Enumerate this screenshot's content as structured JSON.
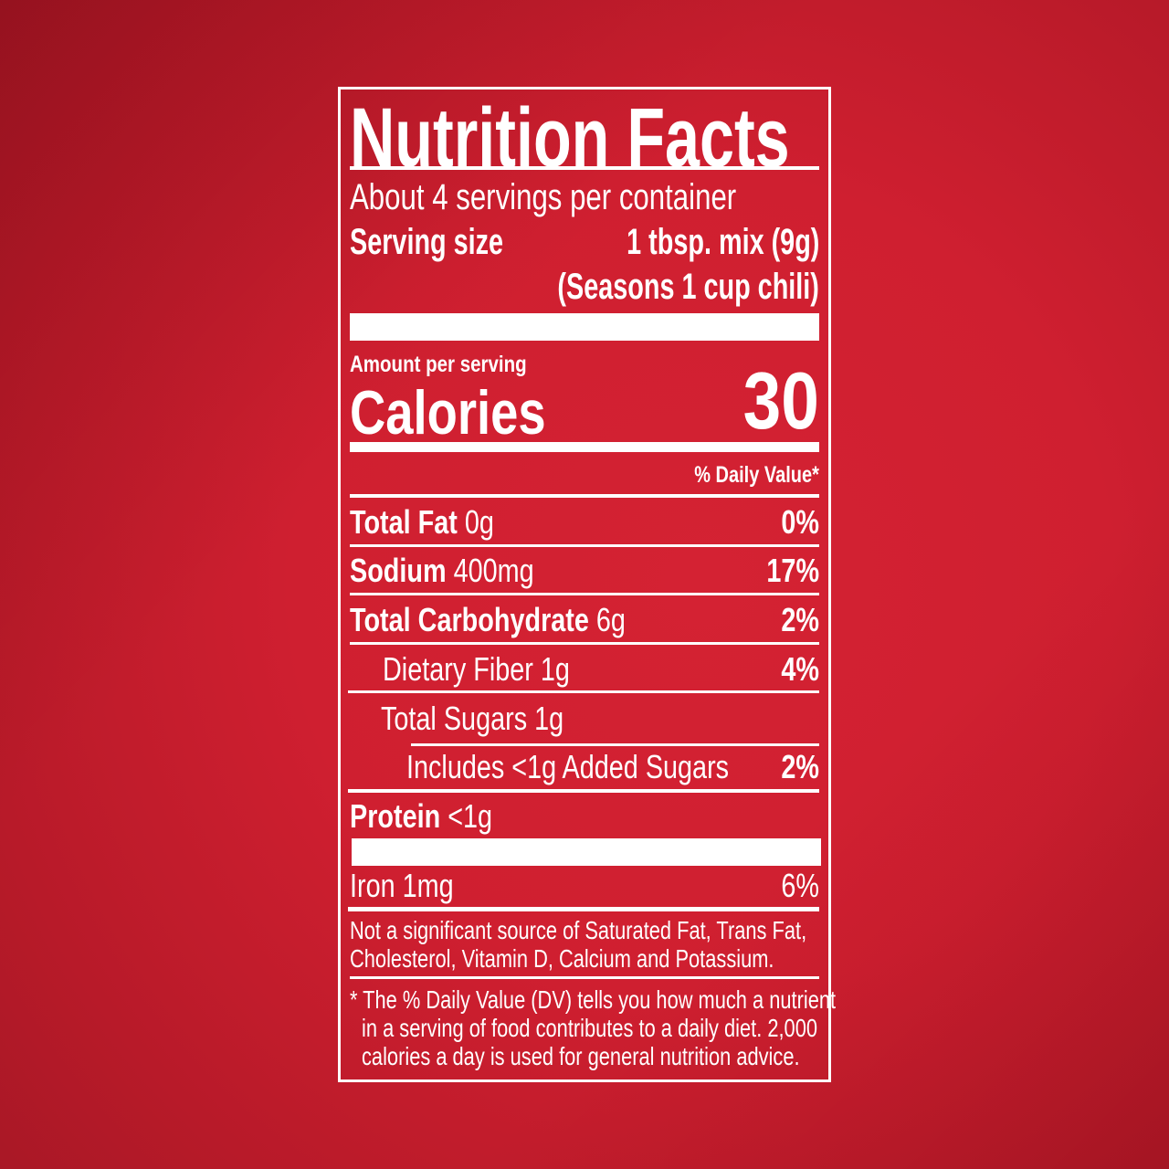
{
  "title": "Nutrition Facts",
  "servings_per_container": "About 4 servings per container",
  "serving_size": {
    "label": "Serving size",
    "value": "1 tbsp. mix (9g)",
    "note": "(Seasons 1 cup chili)"
  },
  "amount_per_serving": "Amount per serving",
  "calories": {
    "label": "Calories",
    "value": "30"
  },
  "daily_value_header": "% Daily Value*",
  "nutrients": [
    {
      "name": "Total Fat",
      "amount": "0g",
      "dv": "0%"
    },
    {
      "name": "Sodium",
      "amount": "400mg",
      "dv": "17%"
    },
    {
      "name": "Total Carbohydrate",
      "amount": "6g",
      "dv": "2%"
    },
    {
      "name": "Dietary Fiber 1g",
      "dv": "4%"
    },
    {
      "name": "Total Sugars 1g"
    },
    {
      "name": "Includes <1g Added Sugars",
      "dv": "2%"
    },
    {
      "name": "Protein",
      "amount": "<1g"
    }
  ],
  "minerals": [
    {
      "name": "Iron 1mg",
      "dv": "6%"
    }
  ],
  "not_significant": [
    "Not a significant source of Saturated Fat, Trans Fat,",
    "Cholesterol, Vitamin D, Calcium and Potassium."
  ],
  "footnote": [
    "* The % Daily Value (DV) tells you how much a nutrient",
    "in a serving of food contributes to a daily diet. 2,000",
    "calories a day is used for general nutrition advice."
  ],
  "colors": {
    "background": "#cf1f30",
    "text": "#ffffff"
  }
}
